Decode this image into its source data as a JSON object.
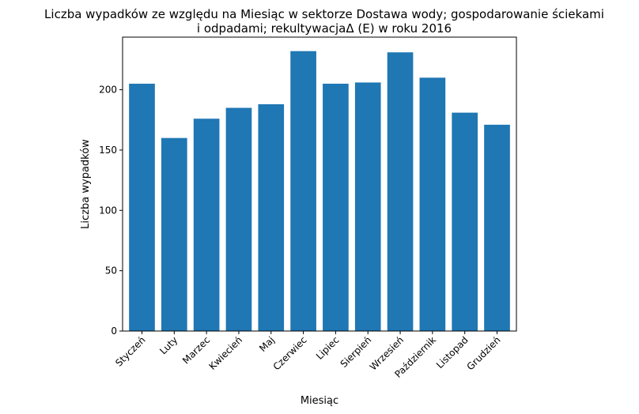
{
  "chart_data": {
    "type": "bar",
    "title_line1": "Liczba wypadków ze względu na Miesiąc w sektorze Dostawa wody; gospodarowanie ściekami",
    "title_line2": "i odpadami;  rekultywacjaΔ  (E) w roku 2016",
    "xlabel": "Miesiąc",
    "ylabel": "Liczba wypadków",
    "categories": [
      "Styczeń",
      "Luty",
      "Marzec",
      "Kwiecień",
      "Maj",
      "Czerwiec",
      "Lipiec",
      "Sierpień",
      "Wrzesień",
      "Październik",
      "Listopad",
      "Grudzień"
    ],
    "values": [
      205,
      160,
      176,
      185,
      188,
      232,
      205,
      206,
      231,
      210,
      181,
      171
    ],
    "ylim": [
      0,
      243.6
    ],
    "yticks": [
      0,
      50,
      100,
      150,
      200
    ],
    "bar_color": "#1f77b4",
    "grid": false,
    "legend": "none"
  }
}
